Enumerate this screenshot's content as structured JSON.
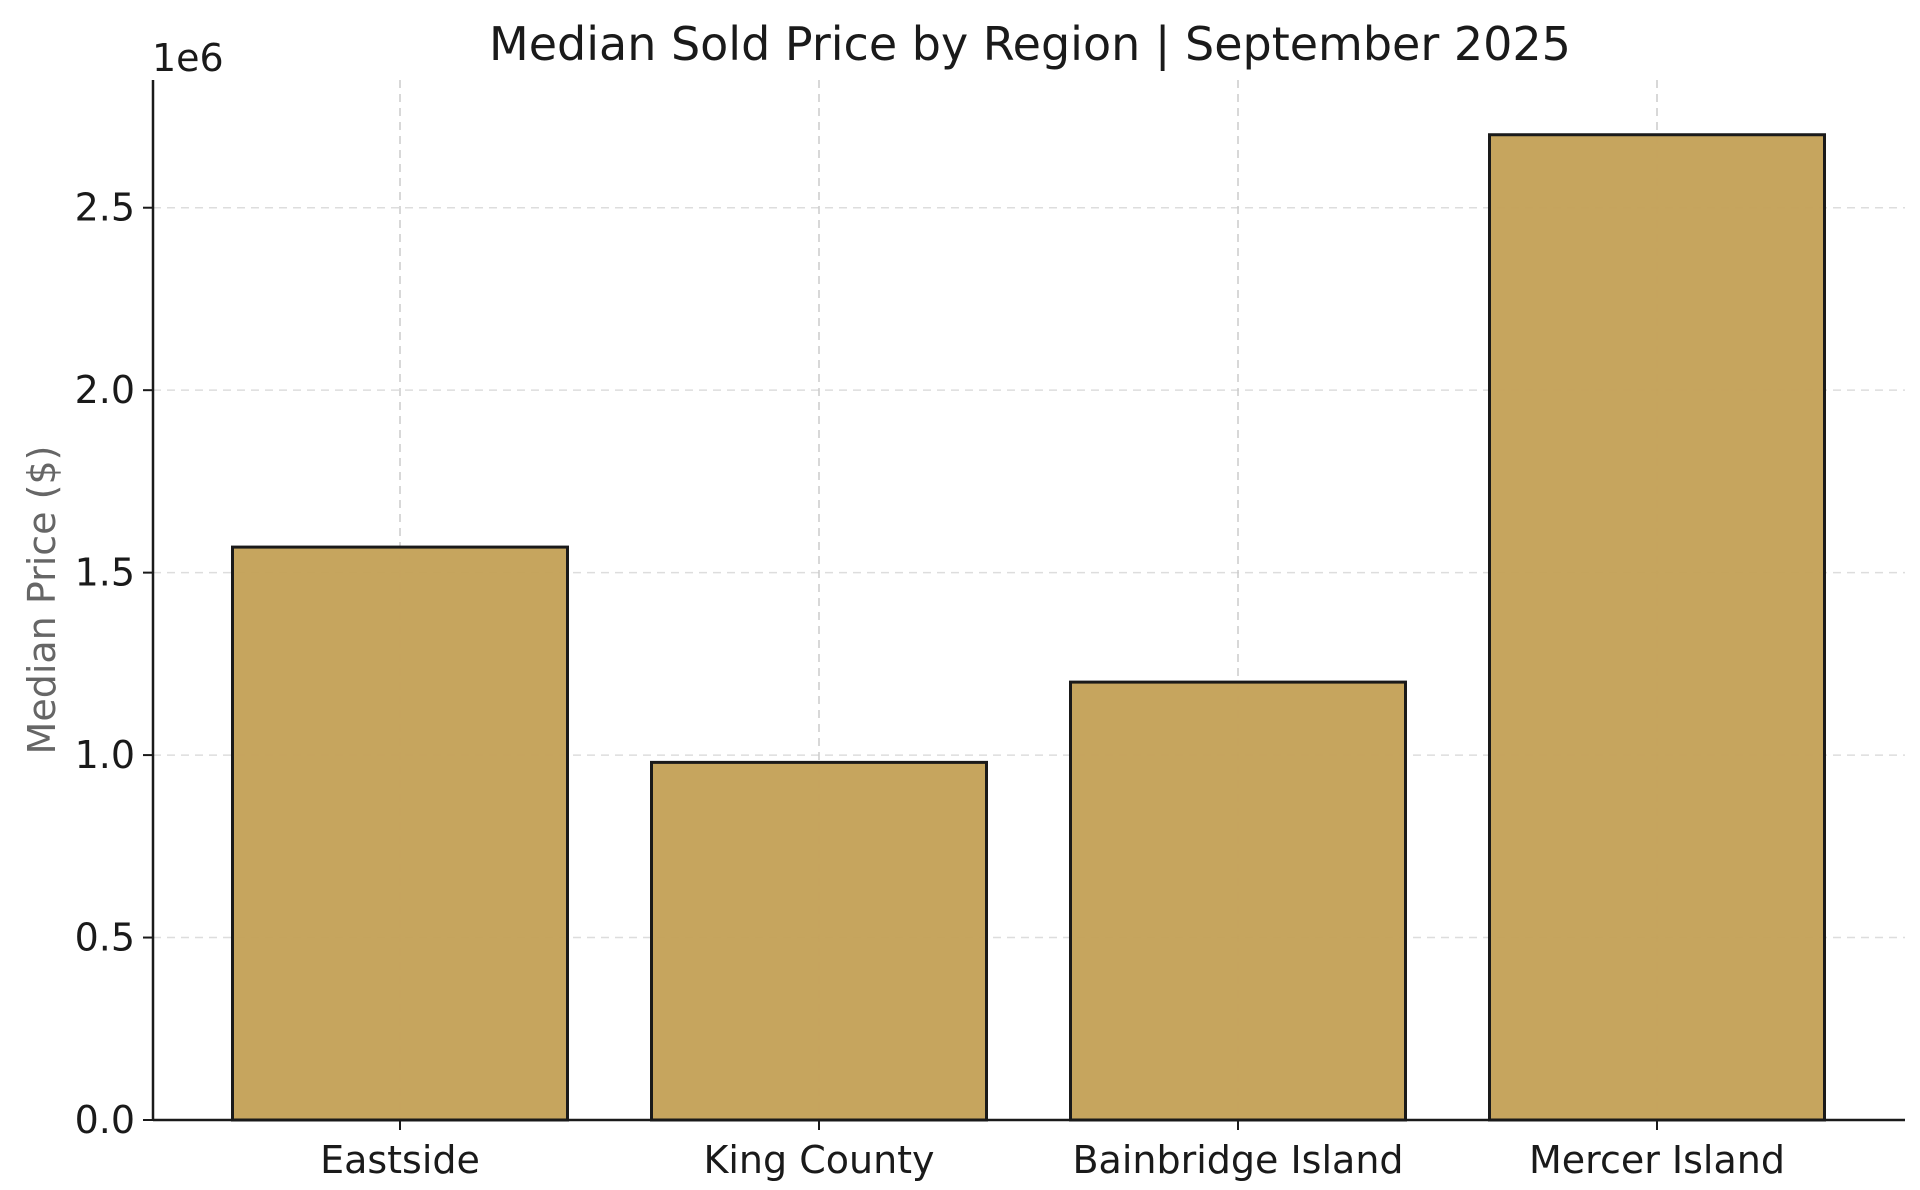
{
  "chart_data": {
    "type": "bar",
    "title": "Median Sold Price by Region | September 2025",
    "xlabel": "",
    "ylabel": "Median Price ($)",
    "y_offset_label": "1e6",
    "categories": [
      "Eastside",
      "King County",
      "Bainbridge Island",
      "Mercer Island"
    ],
    "values": [
      1570000,
      980000,
      1200000,
      2700000
    ],
    "ylim": [
      0,
      2850000
    ],
    "yticks": [
      0,
      500000,
      1000000,
      1500000,
      2000000,
      2500000
    ],
    "ytick_labels": [
      "0.0",
      "0.5",
      "1.0",
      "1.5",
      "2.0",
      "2.5"
    ],
    "grid": true,
    "bar_color": "#c4a259",
    "edge_color": "#1a1a1a",
    "grid_color": "#dddddd"
  }
}
